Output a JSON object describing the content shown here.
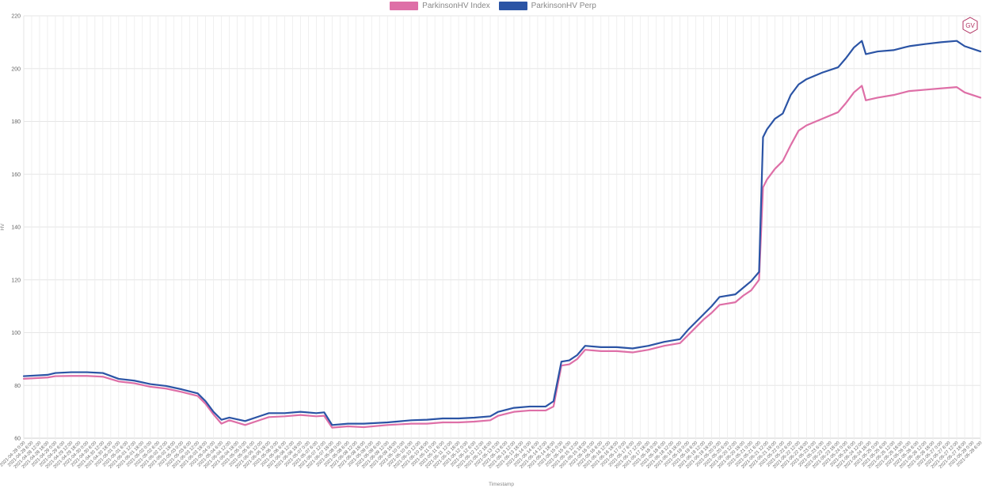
{
  "chart_data": {
    "type": "line",
    "title": "",
    "xlabel": "Timestamp",
    "ylabel": "HV",
    "ylim": [
      60,
      220
    ],
    "yticks": [
      60,
      80,
      100,
      120,
      140,
      160,
      180,
      200,
      220
    ],
    "grid": true,
    "legend_position": "top-center",
    "x_start": "2021-04-28 0:00",
    "x_end": "2021-05-28 6:00",
    "x_tick_step_hours": 6,
    "series": [
      {
        "name": "ParkinsonHV Index",
        "color": "#de6fa7",
        "points": [
          [
            "2021-04-28 0:00",
            82.5
          ],
          [
            "2021-04-28 18:00",
            83.0
          ],
          [
            "2021-04-29 0:00",
            83.5
          ],
          [
            "2021-04-29 12:00",
            83.6
          ],
          [
            "2021-04-30 0:00",
            83.6
          ],
          [
            "2021-04-30 12:00",
            83.3
          ],
          [
            "2021-05-01 0:00",
            81.5
          ],
          [
            "2021-05-01 12:00",
            80.8
          ],
          [
            "2021-05-02 0:00",
            79.5
          ],
          [
            "2021-05-02 12:00",
            78.8
          ],
          [
            "2021-05-03 0:00",
            77.5
          ],
          [
            "2021-05-03 12:00",
            76.0
          ],
          [
            "2021-05-03 18:00",
            73.0
          ],
          [
            "2021-05-04 0:00",
            69.0
          ],
          [
            "2021-05-04 6:00",
            65.5
          ],
          [
            "2021-05-04 12:00",
            66.8
          ],
          [
            "2021-05-05 0:00",
            65.0
          ],
          [
            "2021-05-05 12:00",
            67.0
          ],
          [
            "2021-05-05 18:00",
            68.0
          ],
          [
            "2021-05-06 6:00",
            68.3
          ],
          [
            "2021-05-06 18:00",
            68.8
          ],
          [
            "2021-05-07 6:00",
            68.3
          ],
          [
            "2021-05-07 12:00",
            68.5
          ],
          [
            "2021-05-07 18:00",
            64.0
          ],
          [
            "2021-05-08 6:00",
            64.5
          ],
          [
            "2021-05-08 18:00",
            64.2
          ],
          [
            "2021-05-09 12:00",
            65.0
          ],
          [
            "2021-05-10 6:00",
            65.5
          ],
          [
            "2021-05-10 18:00",
            65.5
          ],
          [
            "2021-05-11 6:00",
            66.0
          ],
          [
            "2021-05-11 18:00",
            66.0
          ],
          [
            "2021-05-12 6:00",
            66.3
          ],
          [
            "2021-05-12 18:00",
            66.8
          ],
          [
            "2021-05-13 0:00",
            68.5
          ],
          [
            "2021-05-13 12:00",
            70.0
          ],
          [
            "2021-05-14 0:00",
            70.5
          ],
          [
            "2021-05-14 12:00",
            70.5
          ],
          [
            "2021-05-14 18:00",
            72.0
          ],
          [
            "2021-05-15 0:00",
            87.5
          ],
          [
            "2021-05-15 6:00",
            88.0
          ],
          [
            "2021-05-15 12:00",
            90.0
          ],
          [
            "2021-05-15 18:00",
            93.5
          ],
          [
            "2021-05-16 6:00",
            93.0
          ],
          [
            "2021-05-16 18:00",
            93.0
          ],
          [
            "2021-05-17 6:00",
            92.5
          ],
          [
            "2021-05-17 18:00",
            93.5
          ],
          [
            "2021-05-18 6:00",
            95.0
          ],
          [
            "2021-05-18 18:00",
            96.0
          ],
          [
            "2021-05-19 0:00",
            99.0
          ],
          [
            "2021-05-19 6:00",
            102.0
          ],
          [
            "2021-05-19 12:00",
            105.0
          ],
          [
            "2021-05-19 18:00",
            107.5
          ],
          [
            "2021-05-20 0:00",
            110.5
          ],
          [
            "2021-05-20 12:00",
            111.5
          ],
          [
            "2021-05-20 18:00",
            114.0
          ],
          [
            "2021-05-21 0:00",
            116.0
          ],
          [
            "2021-05-21 6:00",
            120.0
          ],
          [
            "2021-05-21 9:00",
            155.0
          ],
          [
            "2021-05-21 12:00",
            158.0
          ],
          [
            "2021-05-21 18:00",
            162.0
          ],
          [
            "2021-05-22 0:00",
            165.0
          ],
          [
            "2021-05-22 6:00",
            171.0
          ],
          [
            "2021-05-22 12:00",
            176.5
          ],
          [
            "2021-05-22 18:00",
            178.5
          ],
          [
            "2021-05-23 6:00",
            181.0
          ],
          [
            "2021-05-23 18:00",
            183.5
          ],
          [
            "2021-05-24 0:00",
            187.0
          ],
          [
            "2021-05-24 6:00",
            191.0
          ],
          [
            "2021-05-24 12:00",
            193.5
          ],
          [
            "2021-05-24 15:00",
            188.0
          ],
          [
            "2021-05-25 0:00",
            189.0
          ],
          [
            "2021-05-25 12:00",
            190.0
          ],
          [
            "2021-05-26 0:00",
            191.5
          ],
          [
            "2021-05-26 12:00",
            192.0
          ],
          [
            "2021-05-27 0:00",
            192.5
          ],
          [
            "2021-05-27 12:00",
            193.0
          ],
          [
            "2021-05-27 18:00",
            191.0
          ],
          [
            "2021-05-28 6:00",
            189.0
          ]
        ]
      },
      {
        "name": "ParkinsonHV Perp",
        "color": "#2b54a5",
        "points": [
          [
            "2021-04-28 0:00",
            83.5
          ],
          [
            "2021-04-28 18:00",
            84.0
          ],
          [
            "2021-04-29 0:00",
            84.7
          ],
          [
            "2021-04-29 12:00",
            85.0
          ],
          [
            "2021-04-30 0:00",
            85.0
          ],
          [
            "2021-04-30 12:00",
            84.7
          ],
          [
            "2021-05-01 0:00",
            82.5
          ],
          [
            "2021-05-01 12:00",
            81.8
          ],
          [
            "2021-05-02 0:00",
            80.5
          ],
          [
            "2021-05-02 12:00",
            79.8
          ],
          [
            "2021-05-03 0:00",
            78.5
          ],
          [
            "2021-05-03 12:00",
            77.0
          ],
          [
            "2021-05-03 18:00",
            74.0
          ],
          [
            "2021-05-04 0:00",
            70.0
          ],
          [
            "2021-05-04 6:00",
            67.0
          ],
          [
            "2021-05-04 12:00",
            67.8
          ],
          [
            "2021-05-05 0:00",
            66.5
          ],
          [
            "2021-05-05 12:00",
            68.5
          ],
          [
            "2021-05-05 18:00",
            69.5
          ],
          [
            "2021-05-06 6:00",
            69.5
          ],
          [
            "2021-05-06 18:00",
            70.0
          ],
          [
            "2021-05-07 6:00",
            69.5
          ],
          [
            "2021-05-07 12:00",
            69.8
          ],
          [
            "2021-05-07 18:00",
            65.0
          ],
          [
            "2021-05-08 6:00",
            65.5
          ],
          [
            "2021-05-08 18:00",
            65.5
          ],
          [
            "2021-05-09 12:00",
            66.0
          ],
          [
            "2021-05-10 6:00",
            66.8
          ],
          [
            "2021-05-10 18:00",
            67.0
          ],
          [
            "2021-05-11 6:00",
            67.5
          ],
          [
            "2021-05-11 18:00",
            67.5
          ],
          [
            "2021-05-12 6:00",
            67.8
          ],
          [
            "2021-05-12 18:00",
            68.3
          ],
          [
            "2021-05-13 0:00",
            70.0
          ],
          [
            "2021-05-13 12:00",
            71.5
          ],
          [
            "2021-05-14 0:00",
            72.0
          ],
          [
            "2021-05-14 12:00",
            72.0
          ],
          [
            "2021-05-14 18:00",
            74.0
          ],
          [
            "2021-05-15 0:00",
            89.0
          ],
          [
            "2021-05-15 6:00",
            89.5
          ],
          [
            "2021-05-15 12:00",
            91.5
          ],
          [
            "2021-05-15 18:00",
            95.0
          ],
          [
            "2021-05-16 6:00",
            94.5
          ],
          [
            "2021-05-16 18:00",
            94.5
          ],
          [
            "2021-05-17 6:00",
            94.0
          ],
          [
            "2021-05-17 18:00",
            95.0
          ],
          [
            "2021-05-18 6:00",
            96.5
          ],
          [
            "2021-05-18 18:00",
            97.5
          ],
          [
            "2021-05-19 0:00",
            101.0
          ],
          [
            "2021-05-19 6:00",
            104.0
          ],
          [
            "2021-05-19 12:00",
            107.0
          ],
          [
            "2021-05-19 18:00",
            110.0
          ],
          [
            "2021-05-20 0:00",
            113.5
          ],
          [
            "2021-05-20 12:00",
            114.5
          ],
          [
            "2021-05-20 18:00",
            117.0
          ],
          [
            "2021-05-21 0:00",
            119.5
          ],
          [
            "2021-05-21 6:00",
            123.0
          ],
          [
            "2021-05-21 9:00",
            174.0
          ],
          [
            "2021-05-21 12:00",
            177.0
          ],
          [
            "2021-05-21 18:00",
            181.0
          ],
          [
            "2021-05-22 0:00",
            183.0
          ],
          [
            "2021-05-22 6:00",
            190.0
          ],
          [
            "2021-05-22 12:00",
            194.0
          ],
          [
            "2021-05-22 18:00",
            196.0
          ],
          [
            "2021-05-23 6:00",
            198.5
          ],
          [
            "2021-05-23 18:00",
            200.5
          ],
          [
            "2021-05-24 0:00",
            204.0
          ],
          [
            "2021-05-24 6:00",
            208.0
          ],
          [
            "2021-05-24 12:00",
            210.5
          ],
          [
            "2021-05-24 15:00",
            205.5
          ],
          [
            "2021-05-25 0:00",
            206.5
          ],
          [
            "2021-05-25 12:00",
            207.0
          ],
          [
            "2021-05-26 0:00",
            208.5
          ],
          [
            "2021-05-26 12:00",
            209.3
          ],
          [
            "2021-05-27 0:00",
            210.0
          ],
          [
            "2021-05-27 12:00",
            210.5
          ],
          [
            "2021-05-27 18:00",
            208.5
          ],
          [
            "2021-05-28 6:00",
            206.5
          ]
        ]
      }
    ]
  },
  "badge": {
    "text": "GV",
    "color": "#b03060"
  }
}
